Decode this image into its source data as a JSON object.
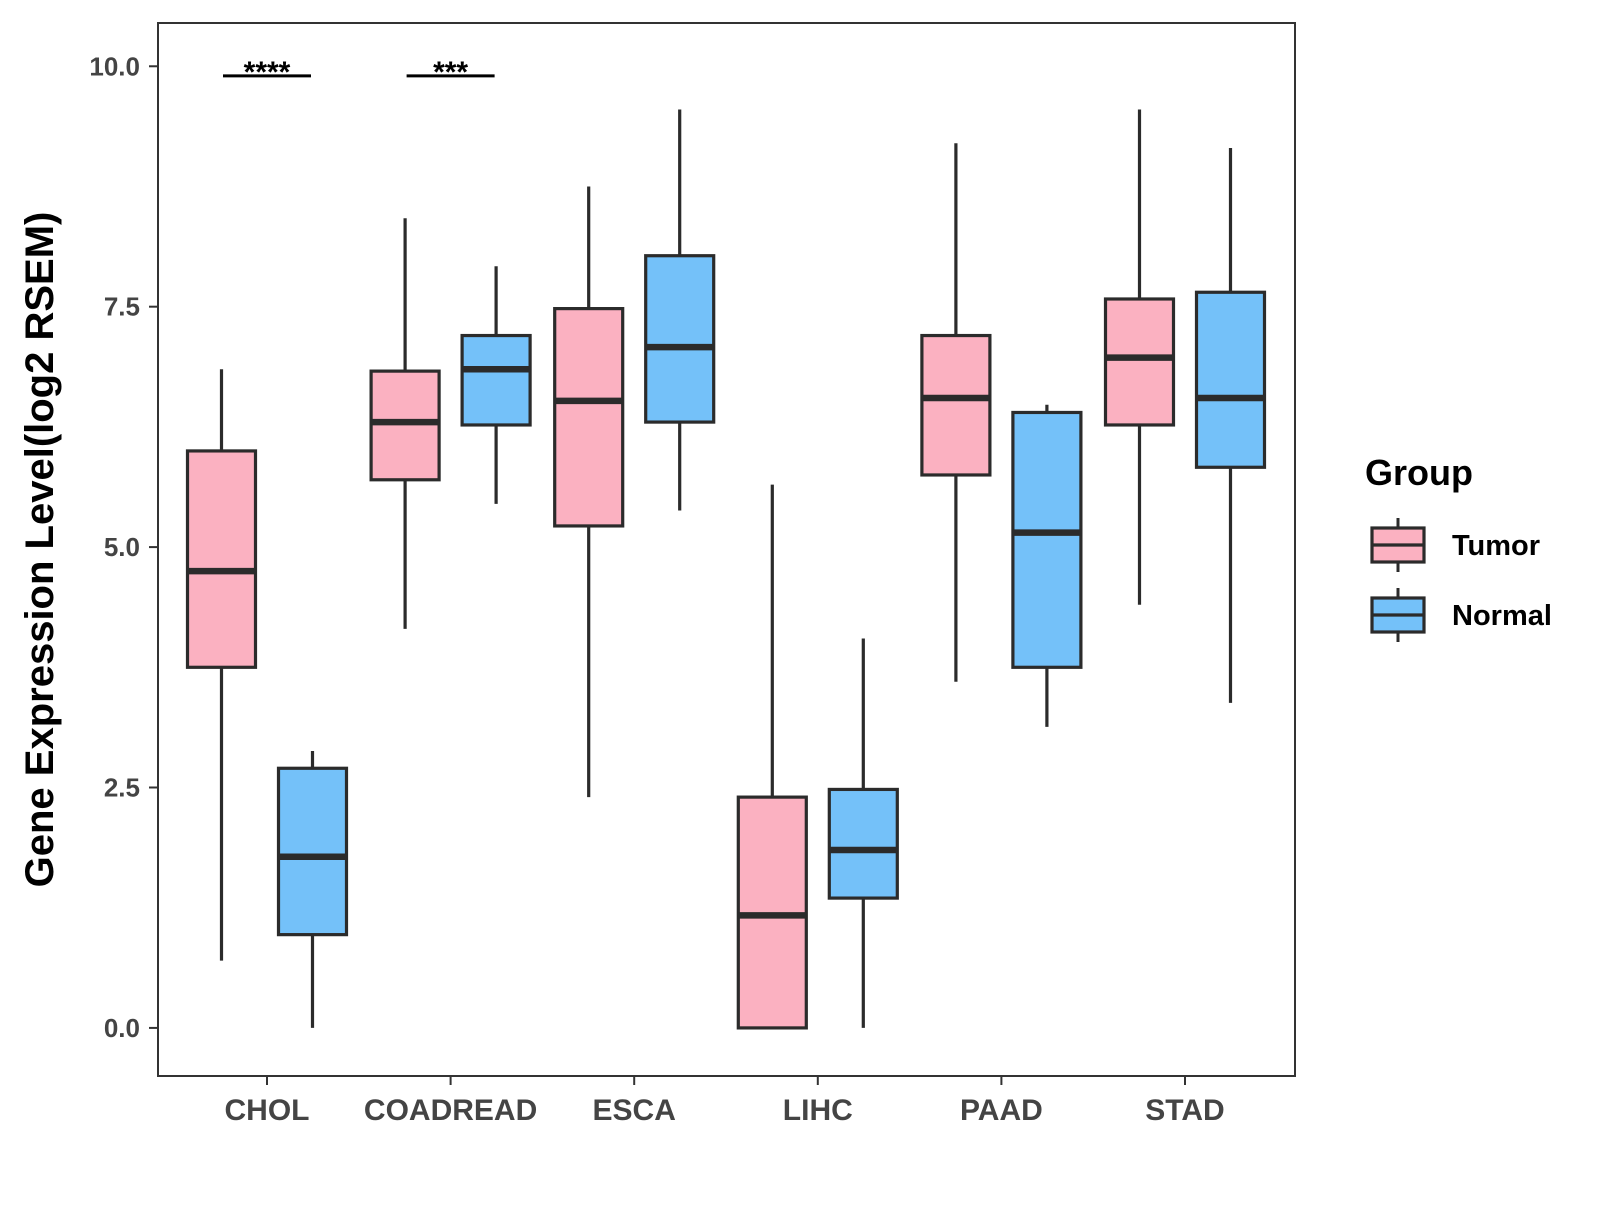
{
  "chart_data": {
    "type": "boxplot",
    "title": "",
    "xlabel": "",
    "ylabel": "Gene Expression Level(log2 RSEM)",
    "ylim": [
      -0.5,
      10.45
    ],
    "yticks": [
      0.0,
      2.5,
      5.0,
      7.5,
      10.0
    ],
    "ytick_labels": [
      "0.0",
      "2.5",
      "5.0",
      "7.5",
      "10.0"
    ],
    "categories": [
      "CHOL",
      "COADREAD",
      "ESCA",
      "LIHC",
      "PAAD",
      "STAD"
    ],
    "legend": {
      "title": "Group",
      "position": "right"
    },
    "series": [
      {
        "name": "Tumor",
        "color": "#fbb1c1",
        "boxes": [
          {
            "whisker_low": 0.7,
            "q1": 3.75,
            "median": 4.75,
            "q3": 6.0,
            "whisker_high": 6.85
          },
          {
            "whisker_low": 4.15,
            "q1": 5.7,
            "median": 6.3,
            "q3": 6.83,
            "whisker_high": 8.42
          },
          {
            "whisker_low": 2.4,
            "q1": 5.22,
            "median": 6.52,
            "q3": 7.48,
            "whisker_high": 8.75
          },
          {
            "whisker_low": 0.0,
            "q1": 0.0,
            "median": 1.17,
            "q3": 2.4,
            "whisker_high": 5.65
          },
          {
            "whisker_low": 3.6,
            "q1": 5.75,
            "median": 6.55,
            "q3": 7.2,
            "whisker_high": 9.2
          },
          {
            "whisker_low": 4.4,
            "q1": 6.27,
            "median": 6.97,
            "q3": 7.58,
            "whisker_high": 9.55
          }
        ]
      },
      {
        "name": "Normal",
        "color": "#74c1f9",
        "boxes": [
          {
            "whisker_low": 0.0,
            "q1": 0.97,
            "median": 1.78,
            "q3": 2.7,
            "whisker_high": 2.88
          },
          {
            "whisker_low": 5.45,
            "q1": 6.27,
            "median": 6.85,
            "q3": 7.2,
            "whisker_high": 7.92
          },
          {
            "whisker_low": 5.38,
            "q1": 6.3,
            "median": 7.08,
            "q3": 8.03,
            "whisker_high": 9.55
          },
          {
            "whisker_low": 0.0,
            "q1": 1.35,
            "median": 1.85,
            "q3": 2.48,
            "whisker_high": 4.05
          },
          {
            "whisker_low": 3.13,
            "q1": 3.75,
            "median": 5.15,
            "q3": 6.4,
            "whisker_high": 6.48
          },
          {
            "whisker_low": 3.38,
            "q1": 5.83,
            "median": 6.55,
            "q3": 7.65,
            "whisker_high": 9.15
          }
        ]
      }
    ],
    "annotations": [
      {
        "category": "CHOL",
        "text": "****",
        "y": 9.9
      },
      {
        "category": "COADREAD",
        "text": "***",
        "y": 9.9
      }
    ]
  }
}
